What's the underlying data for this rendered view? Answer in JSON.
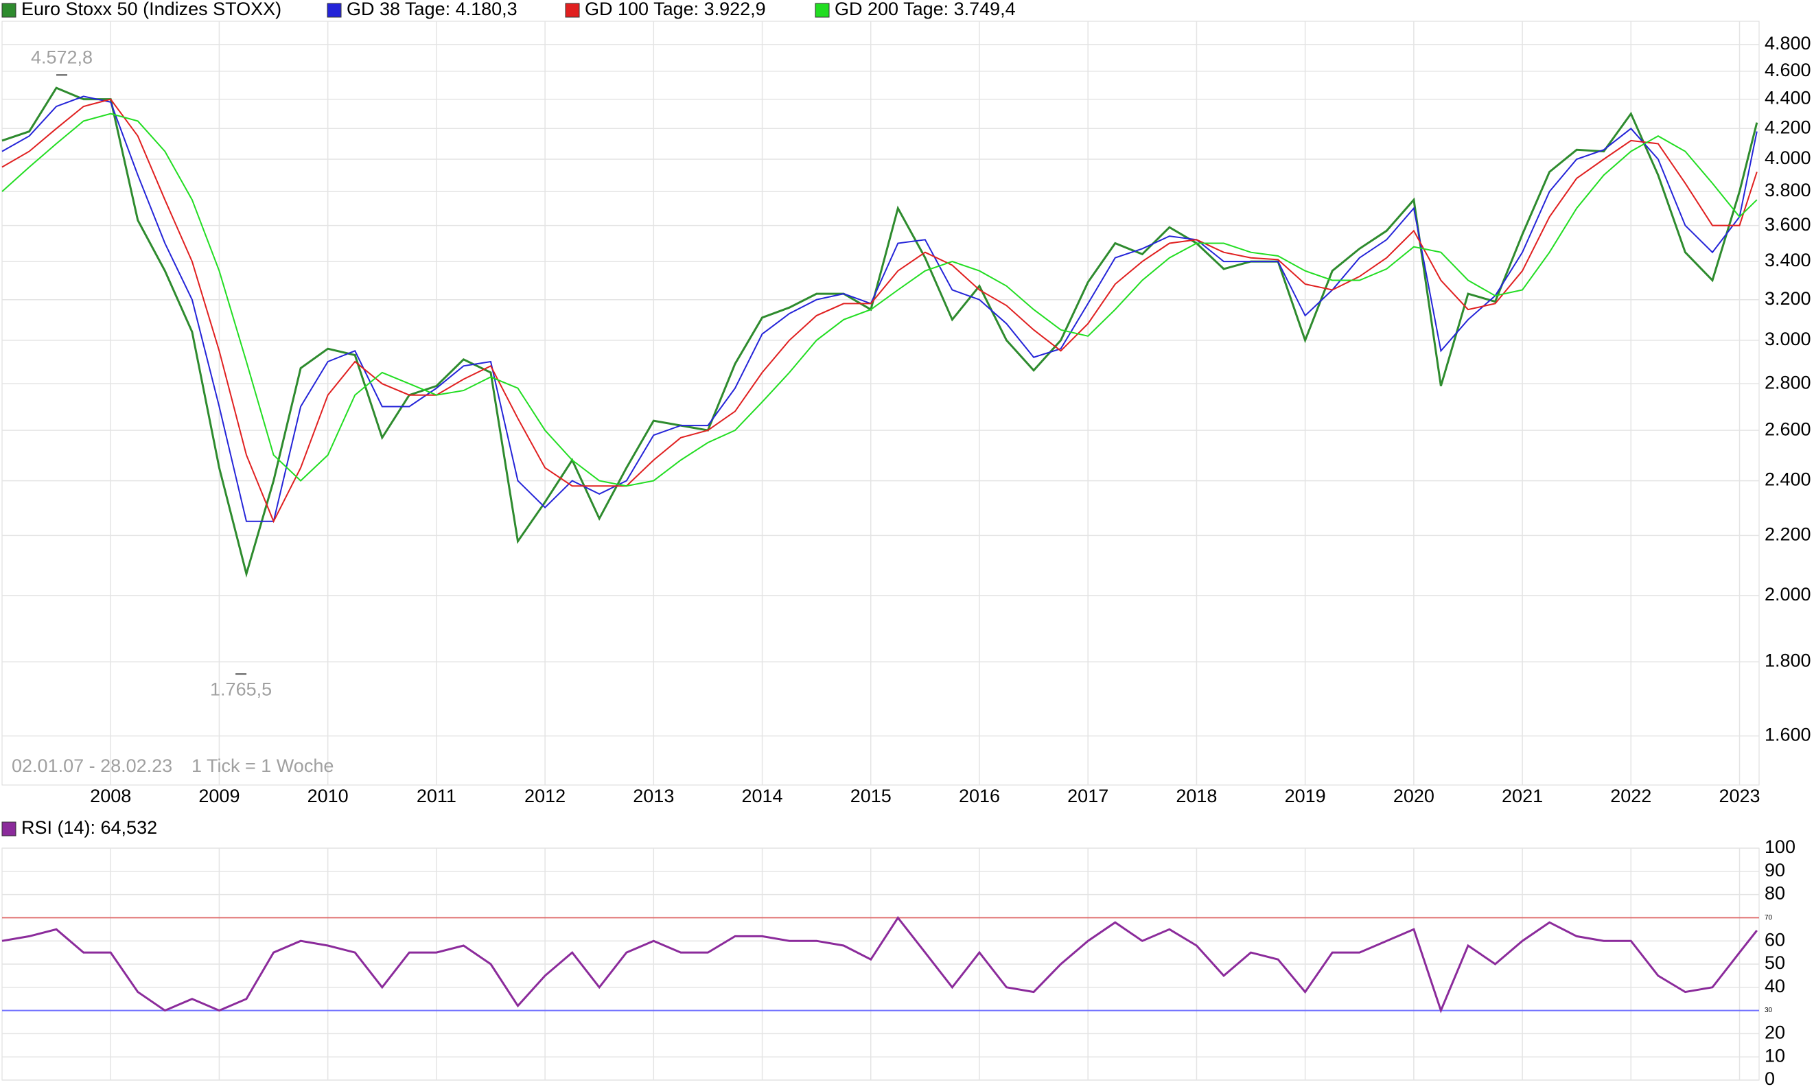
{
  "chart_data": [
    {
      "type": "line",
      "log_scale": true,
      "grid": true,
      "date_range": "02.01.07 - 28.02.23",
      "note": "1 Tick = 1 Woche",
      "x": [
        2007.0,
        2007.25,
        2007.5,
        2007.75,
        2008.0,
        2008.25,
        2008.5,
        2008.75,
        2009.0,
        2009.25,
        2009.5,
        2009.75,
        2010.0,
        2010.25,
        2010.5,
        2010.75,
        2011.0,
        2011.25,
        2011.5,
        2011.75,
        2012.0,
        2012.25,
        2012.5,
        2012.75,
        2013.0,
        2013.25,
        2013.5,
        2013.75,
        2014.0,
        2014.25,
        2014.5,
        2014.75,
        2015.0,
        2015.25,
        2015.5,
        2015.75,
        2016.0,
        2016.25,
        2016.5,
        2016.75,
        2017.0,
        2017.25,
        2017.5,
        2017.75,
        2018.0,
        2018.25,
        2018.5,
        2018.75,
        2019.0,
        2019.25,
        2019.5,
        2019.75,
        2020.0,
        2020.25,
        2020.5,
        2020.75,
        2021.0,
        2021.25,
        2021.5,
        2021.75,
        2022.0,
        2022.25,
        2022.5,
        2022.75,
        2023.0,
        2023.16
      ],
      "series": [
        {
          "name": "Euro Stoxx 50 (Indizes STOXX)",
          "color": "#2e8b2e",
          "values": [
            4120,
            4180,
            4480,
            4400,
            4400,
            3630,
            3350,
            3040,
            2450,
            2070,
            2400,
            2870,
            2960,
            2930,
            2570,
            2750,
            2790,
            2910,
            2850,
            2180,
            2320,
            2480,
            2260,
            2450,
            2640,
            2620,
            2600,
            2890,
            3110,
            3160,
            3230,
            3230,
            3150,
            3700,
            3420,
            3100,
            3270,
            3000,
            2860,
            3000,
            3290,
            3500,
            3440,
            3590,
            3500,
            3360,
            3400,
            3400,
            3000,
            3350,
            3470,
            3570,
            3750,
            2790,
            3230,
            3190,
            3550,
            3920,
            4060,
            4050,
            4300,
            3900,
            3450,
            3300,
            3800,
            4240
          ]
        },
        {
          "name": "GD 38 Tage: 4.180,3",
          "color": "#2424d8",
          "values": [
            4050,
            4150,
            4350,
            4420,
            4380,
            3900,
            3500,
            3200,
            2700,
            2250,
            2250,
            2700,
            2900,
            2950,
            2700,
            2700,
            2780,
            2880,
            2900,
            2400,
            2300,
            2400,
            2350,
            2400,
            2580,
            2620,
            2620,
            2780,
            3030,
            3130,
            3200,
            3230,
            3180,
            3500,
            3520,
            3250,
            3200,
            3080,
            2920,
            2960,
            3180,
            3420,
            3470,
            3540,
            3520,
            3400,
            3400,
            3400,
            3120,
            3250,
            3420,
            3520,
            3700,
            2950,
            3100,
            3220,
            3450,
            3800,
            4000,
            4060,
            4200,
            4000,
            3600,
            3450,
            3650,
            4180
          ]
        },
        {
          "name": "GD 100 Tage: 3.922,9",
          "color": "#e02020",
          "values": [
            3950,
            4050,
            4200,
            4350,
            4400,
            4150,
            3750,
            3400,
            2950,
            2500,
            2250,
            2450,
            2750,
            2900,
            2800,
            2750,
            2750,
            2820,
            2880,
            2650,
            2450,
            2380,
            2380,
            2380,
            2480,
            2570,
            2600,
            2680,
            2850,
            3000,
            3120,
            3180,
            3180,
            3350,
            3450,
            3380,
            3250,
            3170,
            3050,
            2950,
            3080,
            3280,
            3400,
            3500,
            3520,
            3450,
            3420,
            3410,
            3280,
            3250,
            3320,
            3420,
            3570,
            3300,
            3150,
            3180,
            3350,
            3650,
            3880,
            4000,
            4120,
            4100,
            3850,
            3600,
            3600,
            3920
          ]
        },
        {
          "name": "GD 200 Tage: 3.749,4",
          "color": "#22dd22",
          "values": [
            3800,
            3950,
            4100,
            4250,
            4300,
            4250,
            4050,
            3750,
            3350,
            2900,
            2500,
            2400,
            2500,
            2750,
            2850,
            2800,
            2750,
            2770,
            2830,
            2780,
            2600,
            2480,
            2400,
            2380,
            2400,
            2480,
            2550,
            2600,
            2720,
            2850,
            3000,
            3100,
            3150,
            3250,
            3350,
            3400,
            3350,
            3270,
            3150,
            3050,
            3020,
            3150,
            3300,
            3420,
            3500,
            3500,
            3450,
            3430,
            3350,
            3300,
            3300,
            3360,
            3480,
            3450,
            3300,
            3220,
            3250,
            3450,
            3700,
            3900,
            4050,
            4150,
            4050,
            3850,
            3650,
            3750
          ]
        }
      ],
      "annotations": [
        {
          "label": "4.572,8",
          "value": 4572.8,
          "x": 2007.55
        },
        {
          "label": "1.765,5",
          "value": 1765.5,
          "x": 2009.2
        }
      ],
      "xlim": [
        2007.0,
        2023.18
      ],
      "xticks": [
        2008,
        2009,
        2010,
        2011,
        2012,
        2013,
        2014,
        2015,
        2016,
        2017,
        2018,
        2019,
        2020,
        2021,
        2022,
        2023
      ],
      "ylim": [
        1480,
        4980
      ],
      "yticks": [
        {
          "value": 1600,
          "label": "1.600"
        },
        {
          "value": 1800,
          "label": "1.800"
        },
        {
          "value": 2000,
          "label": "2.000"
        },
        {
          "value": 2200,
          "label": "2.200"
        },
        {
          "value": 2400,
          "label": "2.400"
        },
        {
          "value": 2600,
          "label": "2.600"
        },
        {
          "value": 2800,
          "label": "2.800"
        },
        {
          "value": 3000,
          "label": "3.000"
        },
        {
          "value": 3200,
          "label": "3.200"
        },
        {
          "value": 3400,
          "label": "3.400"
        },
        {
          "value": 3600,
          "label": "3.600"
        },
        {
          "value": 3800,
          "label": "3.800"
        },
        {
          "value": 4000,
          "label": "4.000"
        },
        {
          "value": 4200,
          "label": "4.200"
        },
        {
          "value": 4400,
          "label": "4.400"
        },
        {
          "value": 4600,
          "label": "4.600"
        },
        {
          "value": 4800,
          "label": "4.800"
        }
      ]
    },
    {
      "type": "line",
      "log_scale": false,
      "grid": true,
      "x": [
        2007.0,
        2007.25,
        2007.5,
        2007.75,
        2008.0,
        2008.25,
        2008.5,
        2008.75,
        2009.0,
        2009.25,
        2009.5,
        2009.75,
        2010.0,
        2010.25,
        2010.5,
        2010.75,
        2011.0,
        2011.25,
        2011.5,
        2011.75,
        2012.0,
        2012.25,
        2012.5,
        2012.75,
        2013.0,
        2013.25,
        2013.5,
        2013.75,
        2014.0,
        2014.25,
        2014.5,
        2014.75,
        2015.0,
        2015.25,
        2015.5,
        2015.75,
        2016.0,
        2016.25,
        2016.5,
        2016.75,
        2017.0,
        2017.25,
        2017.5,
        2017.75,
        2018.0,
        2018.25,
        2018.5,
        2018.75,
        2019.0,
        2019.25,
        2019.5,
        2019.75,
        2020.0,
        2020.25,
        2020.5,
        2020.75,
        2021.0,
        2021.25,
        2021.5,
        2021.75,
        2022.0,
        2022.25,
        2022.5,
        2022.75,
        2023.0,
        2023.16
      ],
      "series": [
        {
          "name": "RSI (14): 64,532",
          "color": "#8b2b9b",
          "values": [
            60,
            62,
            65,
            55,
            55,
            38,
            30,
            35,
            30,
            35,
            55,
            60,
            58,
            55,
            40,
            55,
            55,
            58,
            50,
            32,
            45,
            55,
            40,
            55,
            60,
            55,
            55,
            62,
            62,
            60,
            60,
            58,
            52,
            70,
            55,
            40,
            55,
            40,
            38,
            50,
            60,
            68,
            60,
            65,
            58,
            45,
            55,
            52,
            38,
            55,
            55,
            60,
            65,
            30,
            58,
            50,
            60,
            68,
            62,
            60,
            60,
            45,
            38,
            40,
            55,
            64.532
          ]
        }
      ],
      "levels": [
        {
          "value": 70,
          "color": "#e07070"
        },
        {
          "value": 30,
          "color": "#7070ff"
        }
      ],
      "xlim": [
        2007.0,
        2023.18
      ],
      "xticks": [
        2008,
        2009,
        2010,
        2011,
        2012,
        2013,
        2014,
        2015,
        2016,
        2017,
        2018,
        2019,
        2020,
        2021,
        2022,
        2023
      ],
      "ylim": [
        0,
        100
      ],
      "yticks": [
        0,
        10,
        20,
        40,
        50,
        60,
        80,
        90,
        100
      ]
    }
  ]
}
